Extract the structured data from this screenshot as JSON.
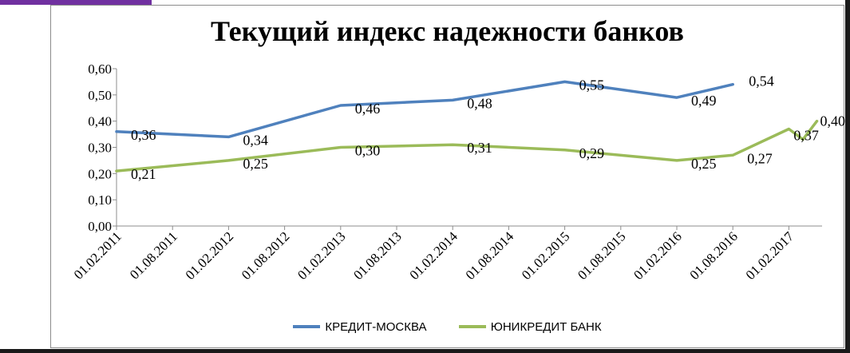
{
  "chart_data": {
    "type": "line",
    "title": "Текущий индекс надежности банков",
    "xlabel": "",
    "ylabel": "",
    "ylim": [
      0,
      0.6
    ],
    "y_ticks": [
      "0,00",
      "0,10",
      "0,20",
      "0,30",
      "0,40",
      "0,50",
      "0,60"
    ],
    "y_tick_values": [
      0,
      0.1,
      0.2,
      0.3,
      0.4,
      0.5,
      0.6
    ],
    "x_tick_labels": [
      "01.02.2011",
      "01.08.2011",
      "01.02.2012",
      "01.08.2012",
      "01.02.2013",
      "01.08.2013",
      "01.02.2014",
      "01.08.2014",
      "01.02.2015",
      "01.08.2015",
      "01.02.2016",
      "01.08.2016",
      "01.02.2017"
    ],
    "grid": false,
    "legend_position": "bottom",
    "series": [
      {
        "name": "КРЕДИТ-МОСКВА",
        "color": "#4F81BD",
        "x": [
          0,
          2,
          4,
          6,
          8,
          10,
          11
        ],
        "values": [
          0.36,
          0.34,
          0.46,
          0.48,
          0.55,
          0.49,
          0.54
        ],
        "labels": [
          "0,36",
          "0,34",
          "0,46",
          "0,48",
          "0,55",
          "0,49",
          "0,54"
        ]
      },
      {
        "name": "ЮНИКРЕДИТ БАНК",
        "color": "#9BBB59",
        "x": [
          0,
          2,
          4,
          6,
          8,
          10,
          11,
          12,
          12.25,
          12.5
        ],
        "values": [
          0.21,
          0.25,
          0.3,
          0.31,
          0.29,
          0.25,
          0.27,
          0.37,
          0.33,
          0.4
        ],
        "labels": [
          "0,21",
          "0,25",
          "0,30",
          "0,31",
          "0,29",
          "0,25",
          "0,27",
          "0,37",
          "",
          "0,40"
        ]
      }
    ]
  }
}
